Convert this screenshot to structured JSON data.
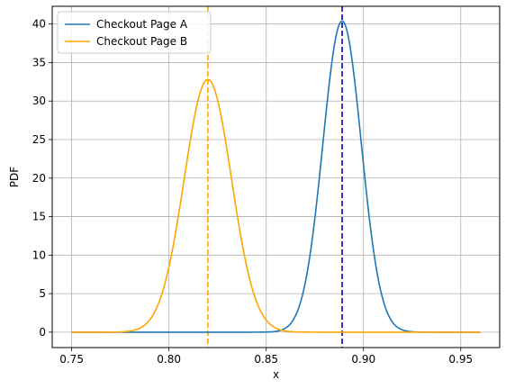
{
  "chart_data": {
    "type": "line",
    "title": "",
    "xlabel": "x",
    "ylabel": "PDF",
    "xlim": [
      0.74,
      0.97
    ],
    "ylim": [
      -2.0,
      42.3
    ],
    "xticks": [
      0.75,
      0.8,
      0.85,
      0.9,
      0.95
    ],
    "xtick_labels": [
      "0.75",
      "0.80",
      "0.85",
      "0.90",
      "0.95"
    ],
    "yticks": [
      0,
      5,
      10,
      15,
      20,
      25,
      30,
      35,
      40
    ],
    "ytick_labels": [
      "0",
      "5",
      "10",
      "15",
      "20",
      "25",
      "30",
      "35",
      "40"
    ],
    "grid": true,
    "legend_position": "top-left",
    "series": [
      {
        "name": "Checkout Page A",
        "color": "#1f77b4",
        "distribution": "normal",
        "mean": 0.889,
        "peak": 40.4,
        "x_range": [
          0.75,
          0.96
        ]
      },
      {
        "name": "Checkout Page B",
        "color": "#ffa500",
        "distribution": "normal",
        "mean": 0.82,
        "peak": 32.8,
        "x_range": [
          0.75,
          0.96
        ]
      }
    ],
    "vlines": [
      {
        "x": 0.889,
        "color": "#0000cd",
        "style": "dashed"
      },
      {
        "x": 0.82,
        "color": "#ffa500",
        "style": "dashed"
      }
    ]
  }
}
